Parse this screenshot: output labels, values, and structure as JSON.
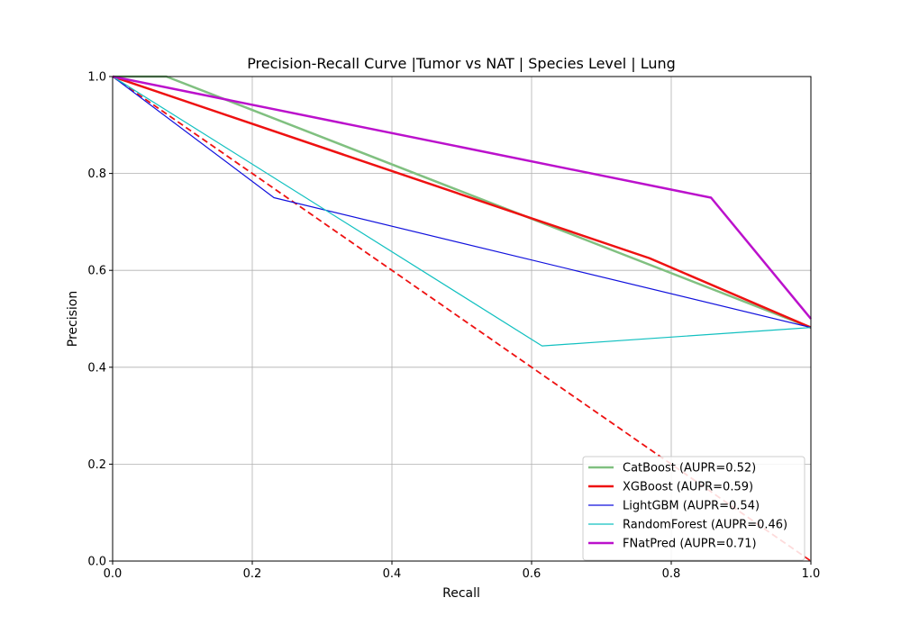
{
  "chart_data": {
    "type": "line",
    "title": "Precision-Recall Curve |Tumor vs NAT | Species Level | Lung",
    "xlabel": "Recall",
    "ylabel": "Precision",
    "xlim": [
      0.0,
      1.0
    ],
    "ylim": [
      0.0,
      1.0
    ],
    "xticks": [
      "0.0",
      "0.2",
      "0.4",
      "0.6",
      "0.8",
      "1.0"
    ],
    "yticks": [
      "0.0",
      "0.2",
      "0.4",
      "0.6",
      "0.8",
      "1.0"
    ],
    "grid": true,
    "legend_position": "lower-right",
    "series": [
      {
        "name": "CatBoost (AUPR=0.52)",
        "color": "#80c080",
        "width": 2.5,
        "x": [
          0.0,
          0.077,
          1.0
        ],
        "y": [
          1.0,
          1.0,
          0.482
        ]
      },
      {
        "name": "XGBoost (AUPR=0.59)",
        "color": "#ee1111",
        "width": 2.5,
        "x": [
          0.0,
          0.769,
          1.0
        ],
        "y": [
          1.0,
          0.625,
          0.482
        ]
      },
      {
        "name": "LightGBM (AUPR=0.54)",
        "color": "#1111dd",
        "width": 1.2,
        "x": [
          0.0,
          0.231,
          1.0
        ],
        "y": [
          1.0,
          0.75,
          0.482
        ]
      },
      {
        "name": "RandomForest (AUPR=0.46)",
        "color": "#11c0c0",
        "width": 1.2,
        "x": [
          0.0,
          0.615,
          1.0
        ],
        "y": [
          1.0,
          0.444,
          0.482
        ]
      },
      {
        "name": "FNatPred (AUPR=0.71)",
        "color": "#bb11cc",
        "width": 2.5,
        "x": [
          0.0,
          0.857,
          1.0
        ],
        "y": [
          1.0,
          0.75,
          0.5
        ]
      }
    ],
    "reference_line": {
      "color": "#ee1111",
      "dashed": true,
      "x": [
        0.0,
        1.0
      ],
      "y": [
        1.0,
        0.0
      ]
    }
  }
}
